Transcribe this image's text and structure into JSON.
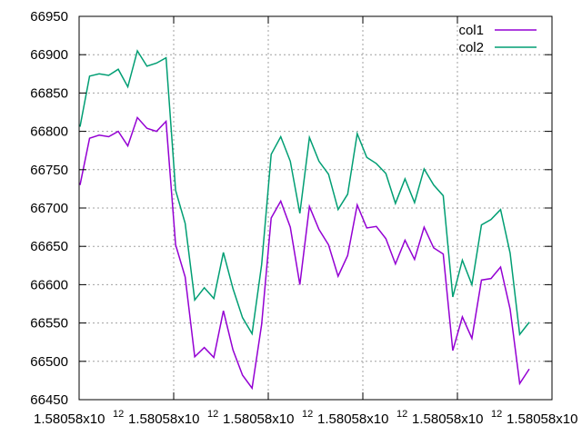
{
  "chart_data": {
    "type": "line",
    "grid": true,
    "legend_position": "top-right",
    "ylim": [
      66450,
      66950
    ],
    "y_ticks": [
      66450,
      66500,
      66550,
      66600,
      66650,
      66700,
      66750,
      66800,
      66850,
      66900,
      66950
    ],
    "x_tick_labels": [
      {
        "mantissa": "1.58058x10",
        "exponent": "12"
      },
      {
        "mantissa": "1.58058x10",
        "exponent": "12"
      },
      {
        "mantissa": "1.58058x10",
        "exponent": "12"
      },
      {
        "mantissa": "1.58058x10",
        "exponent": "12"
      },
      {
        "mantissa": "1.58058x10",
        "exponent": "12"
      },
      {
        "mantissa": "1.58058x10",
        "exponent": "12"
      }
    ],
    "series": [
      {
        "name": "col1",
        "color": "#9400d3",
        "values": [
          66730,
          66791,
          66795,
          66793,
          66800,
          66781,
          66818,
          66804,
          66800,
          66813,
          66652,
          66610,
          66506,
          66518,
          66505,
          66566,
          66515,
          66482,
          66465,
          66548,
          66687,
          66709,
          66675,
          66600,
          66702,
          66672,
          66652,
          66611,
          66638,
          66704,
          66674,
          66676,
          66660,
          66627,
          66658,
          66633,
          66675,
          66648,
          66640,
          66514,
          66558,
          66530,
          66606,
          66608,
          66623,
          66568,
          66471,
          66490
        ]
      },
      {
        "name": "col2",
        "color": "#009e73",
        "values": [
          66806,
          66872,
          66875,
          66873,
          66881,
          66858,
          66905,
          66885,
          66889,
          66896,
          66723,
          66680,
          66580,
          66596,
          66582,
          66642,
          66595,
          66557,
          66536,
          66626,
          66770,
          66793,
          66761,
          66693,
          66792,
          66761,
          66744,
          66698,
          66718,
          66797,
          66766,
          66758,
          66745,
          66706,
          66738,
          66707,
          66751,
          66730,
          66716,
          66584,
          66632,
          66600,
          66678,
          66685,
          66698,
          66641,
          66535,
          66551
        ]
      }
    ]
  }
}
